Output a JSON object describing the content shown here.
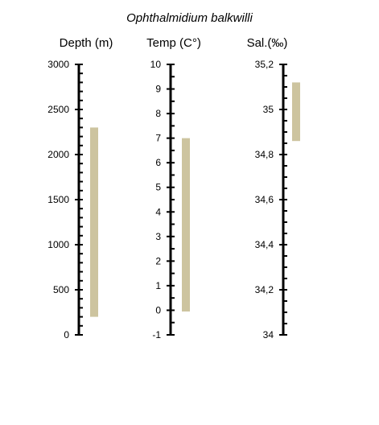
{
  "title": "Ophthalmidium balkwilli",
  "chart_data": [
    {
      "type": "bar",
      "orientation": "range",
      "axis_title": "Depth  (m)",
      "ylim": [
        0,
        3000
      ],
      "major_ticks": [
        0,
        500,
        1000,
        1500,
        2000,
        2500,
        3000
      ],
      "tick_labels": [
        "0",
        "500",
        "1000",
        "1500",
        "2000",
        "2500",
        "3000"
      ],
      "minor_per_major": 5,
      "range": [
        200,
        2300
      ],
      "bar_color": "#cdc49f"
    },
    {
      "type": "bar",
      "orientation": "range",
      "axis_title": "Temp (C°)",
      "ylim": [
        -1,
        10
      ],
      "major_ticks": [
        -1,
        0,
        1,
        2,
        3,
        4,
        5,
        6,
        7,
        8,
        9,
        10
      ],
      "tick_labels": [
        "-1",
        "0",
        "1",
        "2",
        "3",
        "4",
        "5",
        "6",
        "7",
        "8",
        "9",
        "10"
      ],
      "minor_per_major": 2,
      "range": [
        -0.05,
        7.0
      ],
      "bar_color": "#cdc49f"
    },
    {
      "type": "bar",
      "orientation": "range",
      "axis_title": "Sal.(‰)",
      "ylim": [
        34,
        35.2
      ],
      "major_ticks": [
        34,
        34.2,
        34.4,
        34.6,
        34.8,
        35,
        35.2
      ],
      "tick_labels": [
        "34",
        "34,2",
        "34,4",
        "34,6",
        "34,8",
        "35",
        "35,2"
      ],
      "minor_per_major": 4,
      "range": [
        34.86,
        35.12
      ],
      "bar_color": "#cdc49f"
    }
  ]
}
